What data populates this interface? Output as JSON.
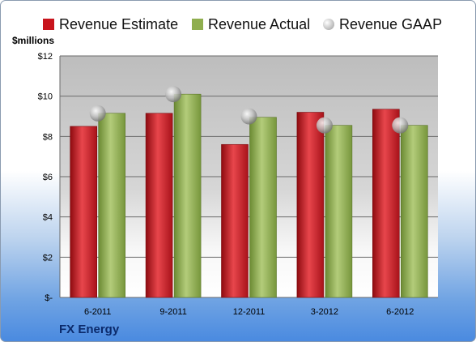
{
  "chart_data": {
    "type": "bar",
    "categories": [
      "6-2011",
      "9-2011",
      "12-2011",
      "3-2012",
      "6-2012"
    ],
    "series": [
      {
        "name": "Revenue Estimate",
        "values": [
          8.5,
          9.15,
          7.6,
          9.2,
          9.35
        ],
        "color": "#c8141c"
      },
      {
        "name": "Revenue Actual",
        "values": [
          9.15,
          10.1,
          8.95,
          8.55,
          8.55
        ],
        "color": "#8fae4e"
      },
      {
        "name": "Revenue GAAP",
        "values": [
          9.15,
          10.1,
          9.0,
          8.55,
          8.55
        ],
        "color": "#b4b4b4",
        "marker": "sphere"
      }
    ],
    "ylabel": "$millions",
    "ylim": [
      0,
      12
    ],
    "yticks": [
      0,
      2,
      4,
      6,
      8,
      10,
      12
    ],
    "ytick_labels": [
      "$-",
      "$2",
      "$4",
      "$6",
      "$8",
      "$10",
      "$12"
    ],
    "grid": true,
    "legend_position": "top",
    "company": "FX Energy"
  }
}
